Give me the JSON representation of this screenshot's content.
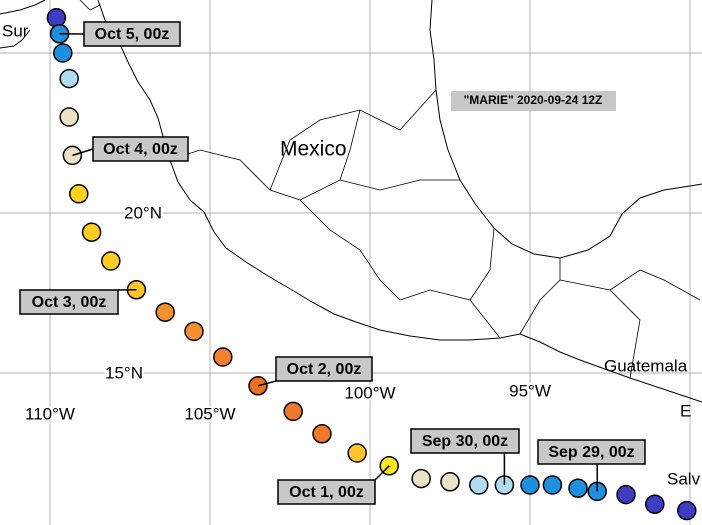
{
  "map": {
    "title": "\"MARIE\" 2020-09-24 12Z",
    "places": [
      "Sur",
      "Mexico",
      "Guatemala",
      "E",
      "Salv"
    ],
    "lat_lines": [
      {
        "value": 25,
        "label": null
      },
      {
        "value": 20,
        "label": "20°N"
      },
      {
        "value": 15,
        "label": "15°N"
      }
    ],
    "lon_lines": [
      {
        "value": -110,
        "label": "110°W"
      },
      {
        "value": -105,
        "label": "105°W"
      },
      {
        "value": -100,
        "label": "100°W"
      },
      {
        "value": -95,
        "label": "95°W"
      },
      {
        "value": -90,
        "label": null
      }
    ],
    "track": [
      {
        "lon": -109.8,
        "lat": 26.1,
        "color": "#3c3cc4"
      },
      {
        "lon": -109.7,
        "lat": 25.6,
        "color": "#1f8fe0"
      },
      {
        "lon": -109.6,
        "lat": 25.0,
        "color": "#1f8fe0"
      },
      {
        "lon": -109.4,
        "lat": 24.2,
        "color": "#b0dcf0"
      },
      {
        "lon": -109.4,
        "lat": 23.0,
        "color": "#ede3c4"
      },
      {
        "lon": -109.3,
        "lat": 21.8,
        "color": "#ede3c4"
      },
      {
        "lon": -109.1,
        "lat": 20.6,
        "color": "#ffd21f"
      },
      {
        "lon": -108.7,
        "lat": 19.4,
        "color": "#ffcc22"
      },
      {
        "lon": -108.1,
        "lat": 18.5,
        "color": "#ffcc22"
      },
      {
        "lon": -107.3,
        "lat": 17.6,
        "color": "#ffc42a"
      },
      {
        "lon": -106.4,
        "lat": 16.9,
        "color": "#f59030"
      },
      {
        "lon": -105.5,
        "lat": 16.3,
        "color": "#f59030"
      },
      {
        "lon": -104.6,
        "lat": 15.5,
        "color": "#f28030"
      },
      {
        "lon": -103.5,
        "lat": 14.6,
        "color": "#f07020"
      },
      {
        "lon": -102.4,
        "lat": 13.8,
        "color": "#f07828"
      },
      {
        "lon": -101.5,
        "lat": 13.1,
        "color": "#f07828"
      },
      {
        "lon": -100.4,
        "lat": 12.5,
        "color": "#ffc42a"
      },
      {
        "lon": -99.4,
        "lat": 12.1,
        "color": "#ffe620"
      },
      {
        "lon": -98.4,
        "lat": 11.7,
        "color": "#ede3c4"
      },
      {
        "lon": -97.5,
        "lat": 11.6,
        "color": "#ede3c4"
      },
      {
        "lon": -96.6,
        "lat": 11.5,
        "color": "#b0dcf0"
      },
      {
        "lon": -95.8,
        "lat": 11.5,
        "color": "#b0dcf0"
      },
      {
        "lon": -95.0,
        "lat": 11.5,
        "color": "#1f8fe0"
      },
      {
        "lon": -94.3,
        "lat": 11.5,
        "color": "#1f8fe0"
      },
      {
        "lon": -93.5,
        "lat": 11.4,
        "color": "#1f8fe0"
      },
      {
        "lon": -92.9,
        "lat": 11.3,
        "color": "#1f8fe0"
      },
      {
        "lon": -92.0,
        "lat": 11.2,
        "color": "#3c3cc4"
      },
      {
        "lon": -91.1,
        "lat": 10.9,
        "color": "#3c3cc4"
      },
      {
        "lon": -90.1,
        "lat": 10.7,
        "color": "#3c3cc4"
      }
    ],
    "time_labels": [
      "Oct 5, 00z",
      "Oct 4, 00z",
      "Oct 3, 00z",
      "Oct 2, 00z",
      "Oct 1, 00z",
      "Sep 30, 00z",
      "Sep 29, 00z"
    ]
  }
}
